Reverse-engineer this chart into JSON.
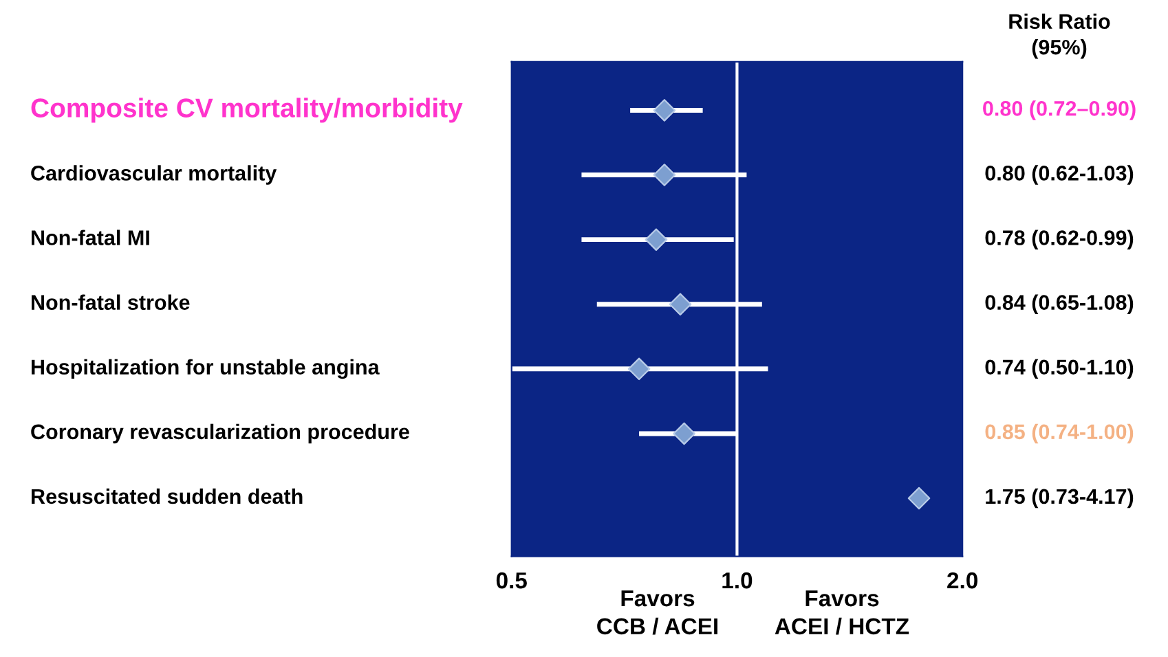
{
  "chart_data": {
    "type": "scatter",
    "categories": [
      "Composite CV mortality/morbidity",
      "Cardiovascular mortality",
      "Non-fatal MI",
      "Non-fatal stroke",
      "Hospitalization for unstable angina",
      "Coronary revascularization procedure",
      "Resuscitated sudden death"
    ],
    "values": [
      0.8,
      0.8,
      0.78,
      0.84,
      0.74,
      0.85,
      1.75
    ],
    "errors": [
      [
        0.72,
        0.9
      ],
      [
        0.62,
        1.03
      ],
      [
        0.62,
        0.99
      ],
      [
        0.65,
        1.08
      ],
      [
        0.5,
        1.1
      ],
      [
        0.74,
        1.0
      ],
      null
    ],
    "value_labels": [
      "0.80 (0.72–0.90)",
      "0.80 (0.62-1.03)",
      "0.78 (0.62-0.99)",
      "0.84 (0.65-1.08)",
      "0.74 (0.50-1.10)",
      "0.85 (0.74-1.00)",
      "1.75 (0.73-4.17)"
    ],
    "orientation": "horizontal",
    "color": "#7d9fd0",
    "marker": "diamond",
    "log": "x",
    "xlim": [
      0.5,
      2.0
    ],
    "xticks": [
      0.5,
      {
        "value": 1.0,
        "label": "1.0"
      },
      {
        "value": 2.0,
        "label": "2.0"
      }
    ],
    "ref_lines": [
      {
        "axis": "x",
        "value": 1.0,
        "color": "#ffffff"
      }
    ],
    "grid": false,
    "annotations": [
      "Risk Ratio\n(95%)",
      "Favors\nCCB / ACEI",
      "Favors\nACEI / HCTZ"
    ]
  }
}
